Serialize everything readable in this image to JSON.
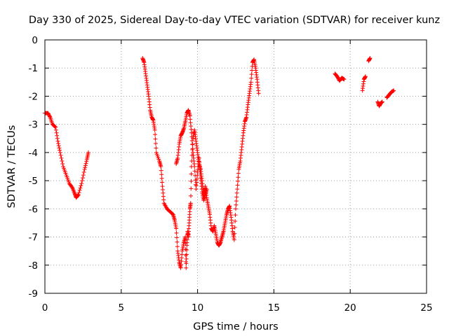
{
  "chart_data": {
    "type": "scatter",
    "title": "Day 330 of 2025, Sidereal Day-to-day VTEC variation (SDTVAR) for receiver kunz",
    "xlabel": "GPS time / hours",
    "ylabel": "SDTVAR / TECUs",
    "xlim": [
      0,
      25
    ],
    "ylim": [
      -9,
      0
    ],
    "xticks": [
      "0",
      "5",
      "10",
      "15",
      "20",
      "25"
    ],
    "yticks": [
      "0",
      "-1",
      "-2",
      "-3",
      "-4",
      "-5",
      "-6",
      "-7",
      "-8",
      "-9"
    ],
    "grid": true,
    "marker": "plus",
    "color": "#ff0000",
    "segments": [
      [
        [
          0.0,
          -2.6
        ],
        [
          0.2,
          -2.6
        ],
        [
          0.35,
          -2.75
        ],
        [
          0.5,
          -3.0
        ],
        [
          0.7,
          -3.1
        ],
        [
          0.85,
          -3.6
        ],
        [
          1.0,
          -4.0
        ],
        [
          1.2,
          -4.5
        ],
        [
          1.4,
          -4.8
        ],
        [
          1.6,
          -5.1
        ],
        [
          1.8,
          -5.25
        ],
        [
          1.95,
          -5.45
        ],
        [
          2.05,
          -5.6
        ],
        [
          2.2,
          -5.5
        ],
        [
          2.4,
          -5.1
        ],
        [
          2.6,
          -4.6
        ],
        [
          2.75,
          -4.25
        ],
        [
          2.85,
          -4.0
        ]
      ],
      [
        [
          6.4,
          -0.65
        ],
        [
          6.5,
          -0.8
        ],
        [
          6.6,
          -1.2
        ],
        [
          6.7,
          -1.6
        ],
        [
          6.8,
          -2.0
        ],
        [
          6.9,
          -2.5
        ],
        [
          7.0,
          -2.75
        ],
        [
          7.1,
          -2.85
        ],
        [
          7.2,
          -3.2
        ],
        [
          7.3,
          -4.0
        ],
        [
          7.5,
          -4.3
        ],
        [
          7.6,
          -4.5
        ],
        [
          7.7,
          -5.2
        ],
        [
          7.8,
          -5.8
        ],
        [
          8.0,
          -6.0
        ],
        [
          8.2,
          -6.1
        ],
        [
          8.4,
          -6.2
        ],
        [
          8.5,
          -6.4
        ],
        [
          8.6,
          -6.7
        ],
        [
          8.7,
          -7.5
        ],
        [
          8.8,
          -7.9
        ],
        [
          8.9,
          -8.1
        ],
        [
          9.0,
          -7.5
        ],
        [
          9.1,
          -7.2
        ],
        [
          9.2,
          -7.0
        ],
        [
          9.25,
          -8.1
        ],
        [
          9.3,
          -7.3
        ],
        [
          9.35,
          -6.8
        ],
        [
          9.4,
          -7.0
        ],
        [
          9.45,
          -6.5
        ],
        [
          9.5,
          -6.0
        ],
        [
          9.55,
          -5.8
        ],
        [
          9.6,
          -4.5
        ],
        [
          9.7,
          -3.5
        ],
        [
          9.8,
          -3.2
        ],
        [
          9.9,
          -3.6
        ],
        [
          10.0,
          -4.0
        ],
        [
          10.1,
          -4.4
        ],
        [
          10.2,
          -4.6
        ],
        [
          10.3,
          -5.0
        ],
        [
          10.4,
          -5.5
        ],
        [
          10.5,
          -5.2
        ],
        [
          10.6,
          -5.6
        ],
        [
          10.7,
          -5.9
        ],
        [
          10.8,
          -6.2
        ],
        [
          10.9,
          -6.7
        ],
        [
          11.0,
          -6.8
        ],
        [
          11.1,
          -6.6
        ],
        [
          11.2,
          -6.9
        ],
        [
          11.3,
          -7.2
        ],
        [
          11.4,
          -7.3
        ],
        [
          11.5,
          -7.2
        ],
        [
          11.6,
          -7.0
        ],
        [
          11.7,
          -6.8
        ],
        [
          11.8,
          -6.5
        ],
        [
          11.9,
          -6.2
        ],
        [
          12.0,
          -6.0
        ],
        [
          12.1,
          -5.9
        ],
        [
          12.2,
          -6.3
        ],
        [
          12.3,
          -6.8
        ],
        [
          12.4,
          -7.1
        ],
        [
          12.5,
          -6.0
        ],
        [
          12.6,
          -5.3
        ],
        [
          12.7,
          -4.6
        ],
        [
          12.8,
          -4.3
        ],
        [
          12.9,
          -3.8
        ],
        [
          13.0,
          -3.3
        ],
        [
          13.1,
          -2.9
        ],
        [
          13.2,
          -2.75
        ],
        [
          13.3,
          -2.3
        ],
        [
          13.4,
          -1.9
        ],
        [
          13.5,
          -1.5
        ],
        [
          13.6,
          -0.8
        ],
        [
          13.7,
          -0.7
        ],
        [
          13.8,
          -1.0
        ],
        [
          13.9,
          -1.4
        ],
        [
          14.0,
          -1.9
        ]
      ],
      [
        [
          8.6,
          -4.4
        ],
        [
          8.7,
          -4.2
        ],
        [
          8.8,
          -3.7
        ],
        [
          8.9,
          -3.4
        ],
        [
          9.0,
          -3.3
        ],
        [
          9.1,
          -3.15
        ],
        [
          9.2,
          -2.9
        ],
        [
          9.3,
          -2.6
        ],
        [
          9.4,
          -2.5
        ],
        [
          9.5,
          -2.7
        ],
        [
          9.6,
          -3.3
        ],
        [
          9.7,
          -4.0
        ],
        [
          9.8,
          -4.5
        ],
        [
          9.9,
          -5.3
        ],
        [
          10.0,
          -4.7
        ],
        [
          10.1,
          -4.2
        ],
        [
          10.2,
          -4.9
        ],
        [
          10.3,
          -5.4
        ],
        [
          10.4,
          -5.7
        ],
        [
          10.5,
          -5.5
        ],
        [
          10.6,
          -5.3
        ]
      ],
      [
        [
          19.0,
          -1.2
        ],
        [
          19.15,
          -1.3
        ],
        [
          19.3,
          -1.45
        ],
        [
          19.45,
          -1.35
        ],
        [
          19.6,
          -1.4
        ]
      ],
      [
        [
          20.8,
          -1.8
        ],
        [
          20.9,
          -1.4
        ],
        [
          21.0,
          -1.3
        ]
      ],
      [
        [
          21.2,
          -0.75
        ],
        [
          21.3,
          -0.65
        ]
      ],
      [
        [
          21.8,
          -2.2
        ],
        [
          21.9,
          -2.35
        ],
        [
          22.0,
          -2.25
        ],
        [
          22.1,
          -2.2
        ]
      ],
      [
        [
          22.4,
          -2.05
        ],
        [
          22.55,
          -1.95
        ],
        [
          22.7,
          -1.85
        ],
        [
          22.85,
          -1.8
        ]
      ]
    ]
  }
}
